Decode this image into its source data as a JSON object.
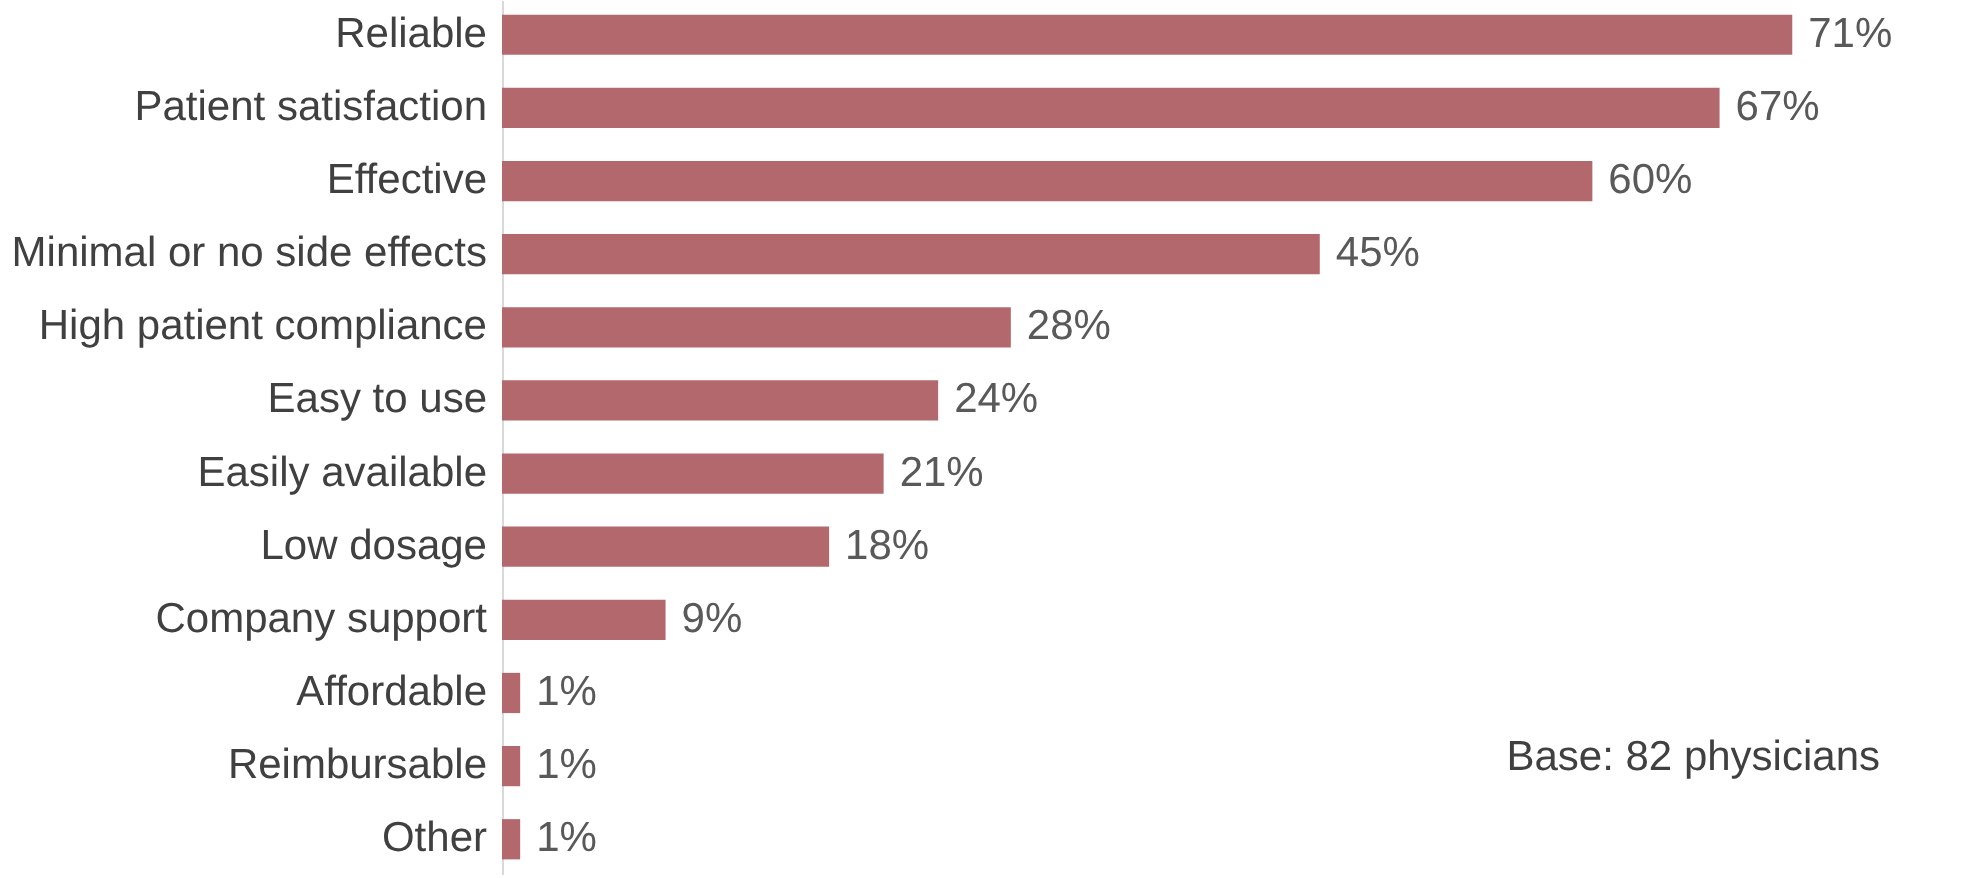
{
  "chart_data": {
    "type": "bar",
    "orientation": "horizontal",
    "categories": [
      "Reliable",
      "Patient satisfaction",
      "Effective",
      "Minimal or no side effects",
      "High patient compliance",
      "Easy to use",
      "Easily available",
      "Low dosage",
      "Company support",
      "Affordable",
      "Reimbursable",
      "Other"
    ],
    "values": [
      71,
      67,
      60,
      45,
      28,
      24,
      21,
      18,
      9,
      1,
      1,
      1
    ],
    "value_labels": [
      "71%",
      "67%",
      "60%",
      "45%",
      "28%",
      "24%",
      "21%",
      "18%",
      "9%",
      "1%",
      "1%",
      "1%"
    ],
    "color": "#b3686e",
    "annotations": [
      "Base: 82 physicians"
    ]
  }
}
